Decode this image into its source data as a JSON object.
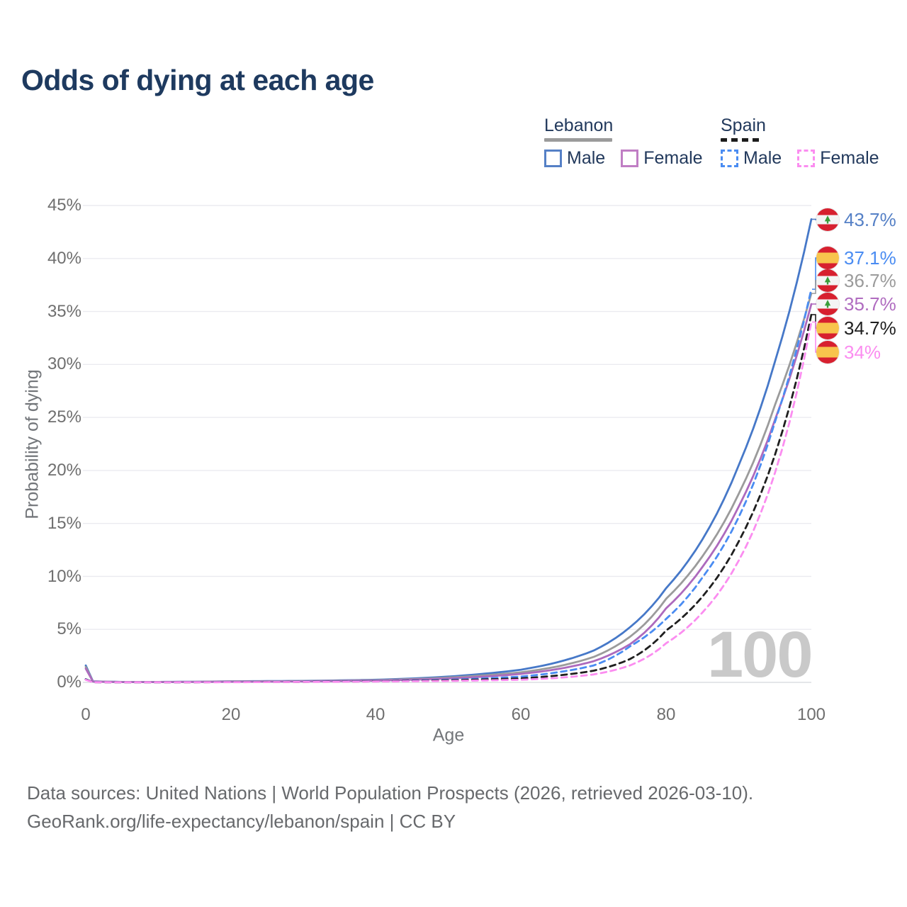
{
  "title": "Odds of dying at each age",
  "watermark": "100",
  "legend": {
    "groups": [
      {
        "label": "Lebanon",
        "style": "solid",
        "underline_color": "#9b9b9b"
      },
      {
        "label": "Spain",
        "style": "dashed",
        "underline_color": "#1c1c1c"
      }
    ],
    "items": [
      {
        "label": "Male",
        "country": "Lebanon",
        "color": "#5580c6",
        "style": "solid"
      },
      {
        "label": "Female",
        "country": "Lebanon",
        "color": "#c07ec4",
        "style": "solid"
      },
      {
        "label": "Male",
        "country": "Spain",
        "color": "#4a8cf2",
        "style": "dashed"
      },
      {
        "label": "Female",
        "country": "Spain",
        "color": "#fb8df0",
        "style": "dashed"
      }
    ]
  },
  "icons": {
    "lebanon_flag": {
      "red": "#d7202f",
      "white": "#f4f4f4",
      "cedar_green": "#3a9e3a"
    },
    "spain_flag": {
      "red": "#d7202f",
      "yellow": "#f8c44d"
    }
  },
  "chart_data": {
    "type": "line",
    "title": "Odds of dying at each age",
    "xlabel": "Age",
    "ylabel": "Probability of dying",
    "xlim": [
      0,
      100
    ],
    "ylim": [
      0,
      45
    ],
    "grid": "horizontal",
    "legend_position": "top-right",
    "x_tick_labels": [
      "0",
      "20",
      "40",
      "60",
      "80",
      "100"
    ],
    "y_tick_labels": [
      "45%",
      "40%",
      "35%",
      "30%",
      "25%",
      "20%",
      "15%",
      "10%",
      "5%",
      "0%"
    ],
    "ages": [
      0,
      1,
      5,
      10,
      20,
      30,
      40,
      50,
      55,
      60,
      65,
      70,
      75,
      80,
      85,
      90,
      95,
      100
    ],
    "unit": "percent",
    "series": [
      {
        "name": "Lebanon Male",
        "country": "Lebanon",
        "sex": "male",
        "color": "#4678c8",
        "dash": "solid",
        "values": [
          1.6,
          0.1,
          0.04,
          0.04,
          0.1,
          0.14,
          0.25,
          0.55,
          0.82,
          1.2,
          1.9,
          3.0,
          5.2,
          8.9,
          13.5,
          20.5,
          30.3,
          43.7
        ]
      },
      {
        "name": "Lebanon Total",
        "country": "Lebanon",
        "sex": "both",
        "color": "#9b9b9b",
        "dash": "solid",
        "values": [
          1.45,
          0.09,
          0.035,
          0.035,
          0.085,
          0.12,
          0.21,
          0.46,
          0.67,
          0.95,
          1.5,
          2.4,
          4.3,
          7.9,
          11.9,
          17.8,
          26.2,
          36.7
        ]
      },
      {
        "name": "Lebanon Female",
        "country": "Lebanon",
        "sex": "female",
        "color": "#ad6abd",
        "dash": "solid",
        "values": [
          1.3,
          0.08,
          0.03,
          0.03,
          0.06,
          0.1,
          0.17,
          0.37,
          0.55,
          0.8,
          1.25,
          2.0,
          3.6,
          7.0,
          10.9,
          16.6,
          24.8,
          35.7
        ]
      },
      {
        "name": "Spain Male",
        "country": "Spain",
        "sex": "male",
        "color": "#4a8cf2",
        "dash": "dashed",
        "values": [
          0.3,
          0.02,
          0.01,
          0.01,
          0.04,
          0.06,
          0.12,
          0.25,
          0.38,
          0.55,
          0.95,
          1.6,
          3.4,
          6.0,
          9.9,
          15.6,
          24.6,
          37.1
        ]
      },
      {
        "name": "Spain Total",
        "country": "Spain",
        "sex": "both",
        "color": "#1f1f1f",
        "dash": "dashed",
        "values": [
          0.28,
          0.018,
          0.009,
          0.009,
          0.03,
          0.05,
          0.1,
          0.2,
          0.28,
          0.38,
          0.65,
          1.1,
          2.2,
          4.9,
          8.1,
          13.3,
          21.5,
          34.7
        ]
      },
      {
        "name": "Spain Female",
        "country": "Spain",
        "sex": "female",
        "color": "#fb8df0",
        "dash": "dashed",
        "values": [
          0.25,
          0.015,
          0.008,
          0.008,
          0.02,
          0.04,
          0.08,
          0.14,
          0.19,
          0.25,
          0.42,
          0.75,
          1.6,
          3.7,
          6.6,
          11.5,
          19.8,
          34.0
        ]
      }
    ],
    "endpoints": [
      {
        "label": "43.7%",
        "value": 43.7,
        "color": "#5580c6",
        "flag": "lebanon",
        "series": "Lebanon Male"
      },
      {
        "label": "37.1%",
        "value": 37.1,
        "color": "#4a8cf2",
        "flag": "spain",
        "series": "Spain Male"
      },
      {
        "label": "36.7%",
        "value": 36.7,
        "color": "#9b9b9b",
        "flag": "lebanon",
        "series": "Lebanon Total"
      },
      {
        "label": "35.7%",
        "value": 35.7,
        "color": "#b06cc0",
        "flag": "lebanon",
        "series": "Lebanon Female"
      },
      {
        "label": "34.7%",
        "value": 34.7,
        "color": "#1f1f1f",
        "flag": "spain",
        "series": "Spain Total"
      },
      {
        "label": "34%",
        "value": 34.0,
        "color": "#fb8df0",
        "flag": "spain",
        "series": "Spain Female"
      }
    ],
    "annotations": [
      {
        "text": "100",
        "role": "watermark"
      }
    ]
  },
  "footer": {
    "line1": "Data sources: United Nations | World Population Prospects (2026, retrieved 2026-03-10).",
    "line2": "GeoRank.org/life-expectancy/lebanon/spain | CC BY"
  }
}
